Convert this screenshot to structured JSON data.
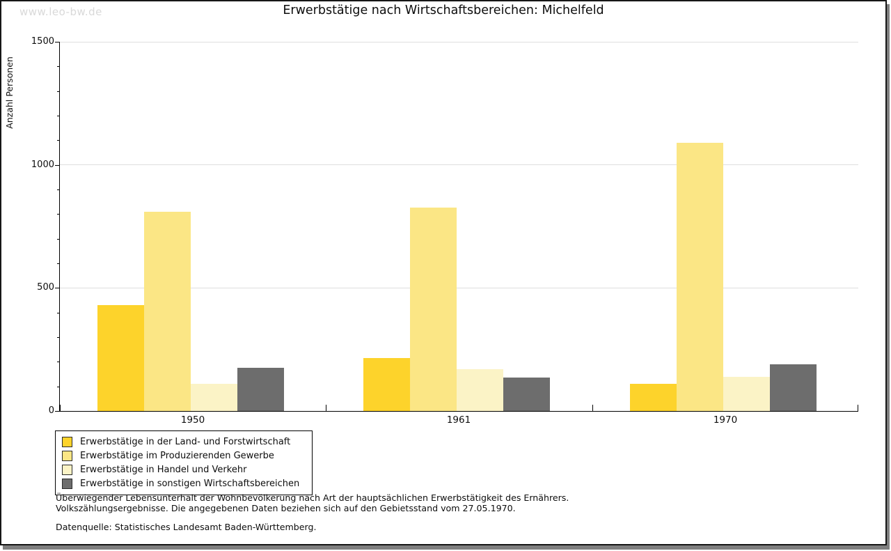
{
  "watermark": "www.leo-bw.de",
  "chart_data": {
    "type": "bar",
    "title": "Erwerbstätige nach Wirtschaftsbereichen: Michelfeld",
    "xlabel": "",
    "ylabel": "Anzahl Personen",
    "ylim": [
      0,
      1500
    ],
    "y_major_ticks": [
      0,
      500,
      1000,
      1500
    ],
    "y_minor_tick_step": 100,
    "gridlines": [
      500,
      1000,
      1500
    ],
    "grid": "horizontal",
    "legend_position": "bottom-left",
    "categories": [
      "1950",
      "1961",
      "1970"
    ],
    "series": [
      {
        "name": "Erwerbstätige in der Land- und Forstwirtschaft",
        "color": "#FDD32B",
        "values": [
          430,
          215,
          110
        ]
      },
      {
        "name": "Erwerbstätige im Produzierenden Gewerbe",
        "color": "#FBE685",
        "values": [
          810,
          825,
          1090
        ]
      },
      {
        "name": "Erwerbstätige in Handel und Verkehr",
        "color": "#FBF3C6",
        "values": [
          110,
          170,
          140
        ]
      },
      {
        "name": "Erwerbstätige in sonstigen Wirtschaftsbereichen",
        "color": "#6D6D6D",
        "values": [
          175,
          135,
          190
        ]
      }
    ]
  },
  "footnotes": {
    "line1": "Überwiegender Lebensunterhalt der Wohnbevölkerung nach Art der hauptsächlichen Erwerbstätigkeit des Ernährers.",
    "line2": "Volkszählungsergebnisse. Die angegebenen Daten beziehen sich auf den Gebietsstand vom 27.05.1970.",
    "source": "Datenquelle: Statistisches Landesamt Baden-Württemberg."
  },
  "style_colors": {
    "grid": "#DEDEDE",
    "axis": "#000000",
    "watermark": "#D9D9D9",
    "shadow": "#7F7F7F"
  }
}
